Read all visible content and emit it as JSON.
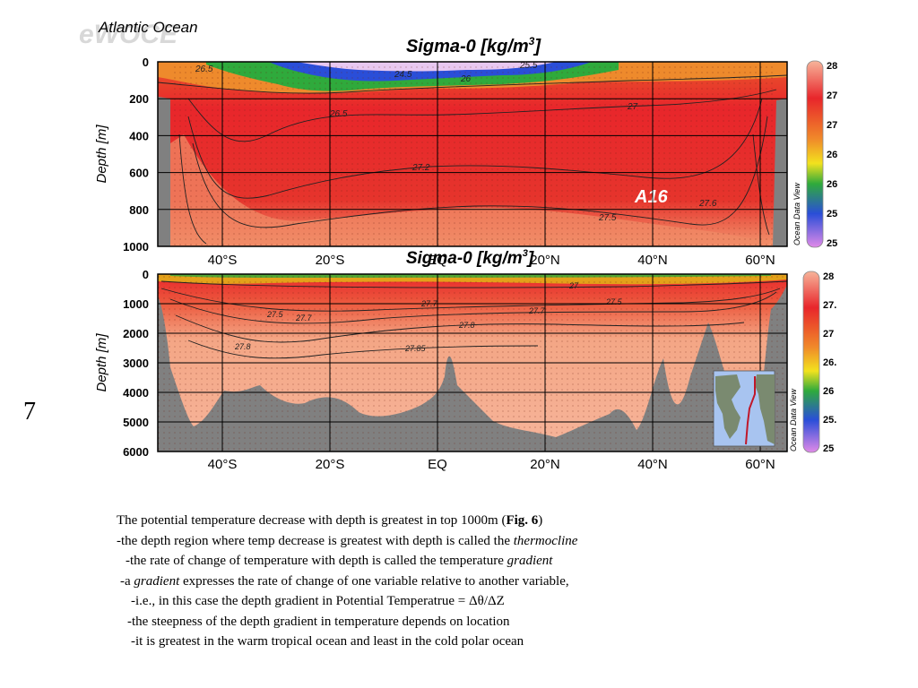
{
  "watermark": "eWOCE",
  "subtitle": "Atlantic Ocean",
  "section_label": "A16",
  "side_label": "Ocean Data View",
  "slide_number": "7",
  "colors": {
    "seafloor": "#808080",
    "deep_water": "#f4a685",
    "intermediate_water": "#e8262b",
    "surface_warm": "#e8782e",
    "surface_green": "#2faa3c",
    "surface_blue": "#2a4ed8",
    "surface_pink": "#e8c8f0",
    "grid": "#000000"
  },
  "chart_data": [
    {
      "type": "heatmap",
      "title": "Sigma-0 [kg/m",
      "title_sup": "3",
      "title_end": "]",
      "ylabel": "Depth [m]",
      "xlabel": "",
      "ylim": [
        1000,
        0
      ],
      "xlim": [
        -52,
        65
      ],
      "x_ticks": [
        {
          "label": "40°S",
          "value": -40
        },
        {
          "label": "20°S",
          "value": -20
        },
        {
          "label": "EQ",
          "value": 0
        },
        {
          "label": "20°N",
          "value": 20
        },
        {
          "label": "40°N",
          "value": 40
        },
        {
          "label": "60°N",
          "value": 60
        }
      ],
      "y_ticks": [
        "0",
        "200",
        "400",
        "600",
        "800",
        "1000"
      ],
      "y_values": [
        0,
        200,
        400,
        600,
        800,
        1000
      ],
      "colorbar_ticks": [
        "28",
        "27",
        "27",
        "26",
        "26",
        "25",
        "25"
      ],
      "contour_labels": [
        "27.5",
        "26.5",
        "27",
        "27.2",
        "27.5",
        "27.6",
        "26",
        "25",
        "25.5",
        "26.5",
        "24.5",
        "27.2"
      ],
      "grid": true
    },
    {
      "type": "heatmap",
      "title": "Sigma-0 [kg/m",
      "title_sup": "3",
      "title_end": "]",
      "ylabel": "Depth [m]",
      "xlabel": "",
      "ylim": [
        6000,
        0
      ],
      "xlim": [
        -52,
        65
      ],
      "x_ticks": [
        {
          "label": "40°S",
          "value": -40
        },
        {
          "label": "20°S",
          "value": -20
        },
        {
          "label": "EQ",
          "value": 0
        },
        {
          "label": "20°N",
          "value": 20
        },
        {
          "label": "40°N",
          "value": 40
        },
        {
          "label": "60°N",
          "value": 60
        }
      ],
      "y_ticks": [
        "0",
        "1000",
        "2000",
        "3000",
        "4000",
        "5000",
        "6000"
      ],
      "y_values": [
        0,
        1000,
        2000,
        3000,
        4000,
        5000,
        6000
      ],
      "colorbar_ticks": [
        "28",
        "27.",
        "27",
        "26.",
        "26",
        "25.",
        "25"
      ],
      "contour_labels": [
        "27.5",
        "27.6",
        "27.7",
        "27.8",
        "27.85",
        "27.7",
        "27.6",
        "27.8",
        "27.85",
        "27.7",
        "27.5",
        "27"
      ],
      "grid": true
    }
  ],
  "caption": {
    "l1_a": "The potential temperature decrease with depth is greatest in top 1000m (",
    "l1_b": "Fig. 6",
    "l1_c": ")",
    "l2_a": "-the depth region where temp decrease is greatest with depth is called the ",
    "l2_b": "thermocline",
    "l3_a": "-the rate of change of temperature with depth is called the temperature ",
    "l3_b": "gradient",
    "l4_a": "-a ",
    "l4_b": "gradient",
    "l4_c": " expresses the rate of change of one variable relative to another variable,",
    "l5": "-i.e., in this case the depth gradient in Potential Temperatrue = Δθ/ΔZ",
    "l6": "-the steepness of the depth gradient in temperature depends on location",
    "l7": "-it is greatest in the warm tropical ocean and least in the cold polar ocean"
  }
}
